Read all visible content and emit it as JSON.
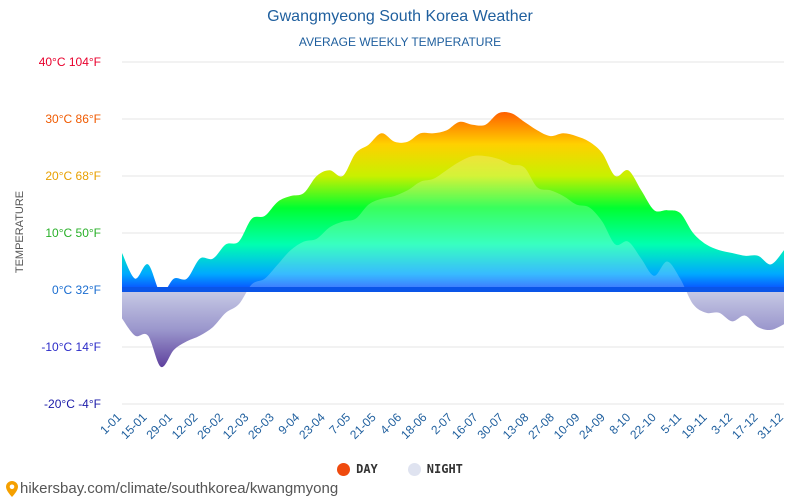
{
  "chart_data": {
    "type": "area",
    "title": "Gwangmyeong South Korea Weather",
    "subtitle": "AVERAGE WEEKLY TEMPERATURE",
    "ylabel": "TEMPERATURE",
    "ylim": [
      -20,
      40
    ],
    "yticks": [
      {
        "value": 40,
        "label": "40°C 104°F",
        "color": "#e8002c"
      },
      {
        "value": 30,
        "label": "30°C 86°F",
        "color": "#f05a00"
      },
      {
        "value": 20,
        "label": "20°C 68°F",
        "color": "#e8a000"
      },
      {
        "value": 10,
        "label": "10°C 50°F",
        "color": "#28b028"
      },
      {
        "value": 0,
        "label": "0°C 32°F",
        "color": "#1a6dd0"
      },
      {
        "value": -10,
        "label": "-10°C 14°F",
        "color": "#2b2bc8"
      },
      {
        "value": -20,
        "label": "-20°C -4°F",
        "color": "#1a1aa8"
      }
    ],
    "x_labels": [
      "1-01",
      "15-01",
      "29-01",
      "12-02",
      "26-02",
      "12-03",
      "26-03",
      "9-04",
      "23-04",
      "7-05",
      "21-05",
      "4-06",
      "18-06",
      "2-07",
      "16-07",
      "30-07",
      "13-08",
      "27-08",
      "10-09",
      "24-09",
      "8-10",
      "22-10",
      "5-11",
      "19-11",
      "3-12",
      "17-12",
      "31-12"
    ],
    "series": [
      {
        "name": "DAY",
        "color": "#ef4a0e",
        "values": [
          6.5,
          2.0,
          4.5,
          -0.5,
          2.0,
          2.0,
          5.5,
          5.5,
          8.0,
          8.5,
          12.5,
          13.0,
          15.5,
          16.5,
          17.0,
          20.0,
          21.0,
          20.0,
          24.0,
          25.5,
          27.5,
          26.0,
          26.0,
          27.5,
          27.5,
          28.0,
          29.5,
          29.0,
          29.0,
          31.0,
          31.0,
          29.5,
          28.0,
          27.0,
          27.5,
          27.0,
          26.0,
          24.0,
          20.0,
          21.0,
          17.5,
          14.0,
          14.0,
          13.5,
          10.0,
          8.0,
          7.0,
          6.5,
          6.0,
          6.0,
          4.5,
          7.0
        ]
      },
      {
        "name": "NIGHT",
        "color": "#dfe3f0",
        "values": [
          -5.0,
          -8.0,
          -8.0,
          -13.5,
          -10.5,
          -9.0,
          -8.0,
          -6.5,
          -4.0,
          -2.5,
          1.0,
          2.0,
          4.5,
          7.0,
          8.5,
          9.0,
          11.0,
          12.0,
          12.5,
          15.0,
          16.0,
          16.5,
          17.5,
          19.0,
          19.5,
          21.0,
          22.5,
          23.5,
          23.5,
          23.0,
          22.0,
          21.5,
          18.0,
          17.5,
          16.5,
          15.0,
          14.5,
          12.0,
          8.0,
          8.5,
          5.5,
          2.5,
          5.0,
          2.0,
          -2.5,
          -4.0,
          -4.0,
          -5.5,
          -4.5,
          -6.5,
          -7.0,
          -6.0
        ]
      }
    ]
  },
  "footer": {
    "text": "hikersbay.com/climate/southkorea/kwangmyong",
    "pin_icon": "location-pin-icon"
  }
}
